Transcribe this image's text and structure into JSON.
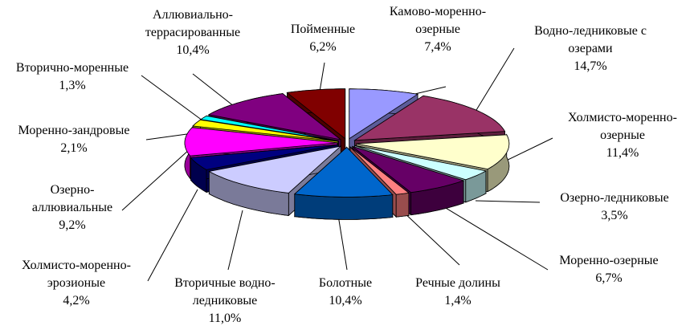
{
  "chart_data": {
    "type": "pie",
    "categories": [
      "Камово-моренно-озерные",
      "Водно-ледниковые с озерами",
      "Холмисто-моренно-озерные",
      "Озерно-ледниковые",
      "Моренно-озерные",
      "Речные долины",
      "Болотные",
      "Вторичные водно-ледниковые",
      "Холмисто-моренно-эрозионые",
      "Озерно-аллювиальные",
      "Моренно-зандровые",
      "Вторично-моренные",
      "Аллювиально-террасированные",
      "Пойменные"
    ],
    "values": [
      7.4,
      14.7,
      11.4,
      3.5,
      6.7,
      1.4,
      10.4,
      11.0,
      4.2,
      9.2,
      2.1,
      1.3,
      10.4,
      6.2
    ],
    "value_labels": [
      "7,4%",
      "14,7%",
      "11,4%",
      "3,5%",
      "6,7%",
      "1,4%",
      "10,4%",
      "11,0%",
      "4,2%",
      "9,2%",
      "2,1%",
      "1,3%",
      "10,4%",
      "6,2%"
    ],
    "colors": [
      "#9999ff",
      "#993366",
      "#ffffcc",
      "#ccffff",
      "#660066",
      "#ff8080",
      "#0066cc",
      "#ccccff",
      "#000080",
      "#ff00ff",
      "#ffff00",
      "#00ffff",
      "#800080",
      "#800000"
    ]
  }
}
